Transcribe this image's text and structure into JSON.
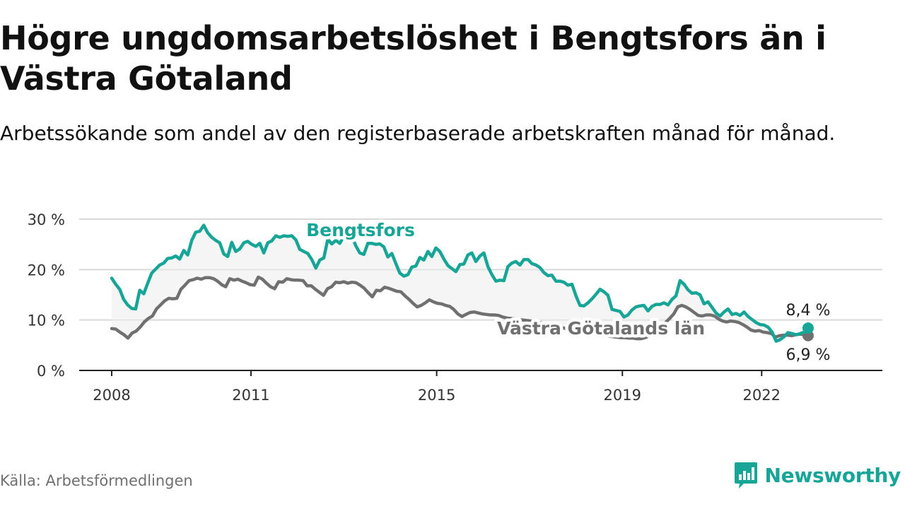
{
  "header": {
    "title": "Högre ungdomsarbetslöshet i Bengtsfors än i Västra Götaland",
    "subtitle": "Arbetssökande som andel av den registerbaserade arbetskraften månad för månad."
  },
  "footer": {
    "source": "Källa: Arbetsförmedlingen",
    "brand": "Newsworthy"
  },
  "colors": {
    "bengtsfors": "#16a596",
    "vastra_gotaland": "#707070",
    "band": "#ececec",
    "grid": "#d9d9d9",
    "axis": "#222222"
  },
  "chart_data": {
    "type": "line",
    "title": "Högre ungdomsarbetslöshet i Bengtsfors än i Västra Götaland",
    "subtitle": "Arbetssökande som andel av den registerbaserade arbetskraften månad för månad.",
    "xlabel": "",
    "ylabel": "",
    "x_range": [
      2008.0,
      2023.0
    ],
    "xlim": [
      2007.3,
      2024.6
    ],
    "ylim": [
      0,
      30
    ],
    "x_ticks": [
      {
        "value": 2008,
        "label": "2008"
      },
      {
        "value": 2011,
        "label": "2011"
      },
      {
        "value": 2015,
        "label": "2015"
      },
      {
        "value": 2019,
        "label": "2019"
      },
      {
        "value": 2022,
        "label": "2022"
      }
    ],
    "y_ticks": [
      {
        "value": 0,
        "label": "0 %"
      },
      {
        "value": 10,
        "label": "10 %"
      },
      {
        "value": 20,
        "label": "20 %"
      },
      {
        "value": 30,
        "label": "30 %"
      }
    ],
    "grid": true,
    "series": [
      {
        "name": "Bengtsfors",
        "color": "#16a596",
        "end_label": "8,4 %",
        "label_placement": "above the line, near 2012",
        "values": [
          18.3,
          17.1,
          16.1,
          14.1,
          13.0,
          12.3,
          12.2,
          15.9,
          15.2,
          17.3,
          19.3,
          20.1,
          20.9,
          21.3,
          22.2,
          22.3,
          22.7,
          22.1,
          23.8,
          22.9,
          25.8,
          27.4,
          27.6,
          28.8,
          27.3,
          26.4,
          25.8,
          25.3,
          23.1,
          22.6,
          25.4,
          23.6,
          24.1,
          25.3,
          25.6,
          25.0,
          24.6,
          25.2,
          23.3,
          25.3,
          25.7,
          26.7,
          26.4,
          26.7,
          26.6,
          26.7,
          25.9,
          24.0,
          23.6,
          23.2,
          22.0,
          20.3,
          21.9,
          22.3,
          26.0,
          25.1,
          25.8,
          25.2,
          26.6,
          27.1,
          26.6,
          24.7,
          23.3,
          23.0,
          25.2,
          25.2,
          25.0,
          25.1,
          24.5,
          22.5,
          23.2,
          21.2,
          19.3,
          18.7,
          19.0,
          20.5,
          20.7,
          22.4,
          21.9,
          23.6,
          22.6,
          24.3,
          23.6,
          22.1,
          20.8,
          20.2,
          19.6,
          21.0,
          21.1,
          22.9,
          23.3,
          21.6,
          22.7,
          23.3,
          20.6,
          19.0,
          17.7,
          17.9,
          17.8,
          20.6,
          21.3,
          21.6,
          20.9,
          22.0,
          22.0,
          21.2,
          20.9,
          20.4,
          19.4,
          18.8,
          18.9,
          17.7,
          17.7,
          17.5,
          16.9,
          17.1,
          14.8,
          12.9,
          12.8,
          13.4,
          14.2,
          15.1,
          16.1,
          15.6,
          14.9,
          12.1,
          11.9,
          11.7,
          10.6,
          11.0,
          12.0,
          12.6,
          12.8,
          12.9,
          11.8,
          12.7,
          13.1,
          13.1,
          13.4,
          13.0,
          14.1,
          14.8,
          17.8,
          17.1,
          16.0,
          15.3,
          15.4,
          15.0,
          13.2,
          13.6,
          12.5,
          11.4,
          10.8,
          11.6,
          12.2,
          11.1,
          11.3,
          10.9,
          11.6,
          10.7,
          10.1,
          9.5,
          9.1,
          9.0,
          8.6,
          7.6,
          5.8,
          6.1,
          6.7,
          7.5,
          7.3,
          7.1,
          7.3,
          7.6,
          8.4
        ]
      },
      {
        "name": "Västra Götalands län",
        "color": "#707070",
        "end_label": "6,9 %",
        "label_placement": "below the band, near 2018",
        "values": [
          8.3,
          8.2,
          7.6,
          7.1,
          6.4,
          7.4,
          7.8,
          8.6,
          9.6,
          10.3,
          10.8,
          12.2,
          13.0,
          13.8,
          14.3,
          14.2,
          14.3,
          16.1,
          16.9,
          17.8,
          18.0,
          18.3,
          18.1,
          18.4,
          18.4,
          18.2,
          17.7,
          17.0,
          16.6,
          18.2,
          17.9,
          18.1,
          17.7,
          17.4,
          17.0,
          16.9,
          18.5,
          18.1,
          17.3,
          16.6,
          16.2,
          17.6,
          17.5,
          18.2,
          18.0,
          17.9,
          17.9,
          17.8,
          16.8,
          16.8,
          16.1,
          15.5,
          14.9,
          16.2,
          16.6,
          17.5,
          17.4,
          17.6,
          17.3,
          17.5,
          17.4,
          16.9,
          16.3,
          15.4,
          14.6,
          15.9,
          15.8,
          16.5,
          16.3,
          16.0,
          15.7,
          15.6,
          14.8,
          14.1,
          13.3,
          12.6,
          12.9,
          13.4,
          14.0,
          13.6,
          13.3,
          13.2,
          12.9,
          12.7,
          12.1,
          11.2,
          10.7,
          11.1,
          11.5,
          11.6,
          11.4,
          11.2,
          11.1,
          11.0,
          11.0,
          10.9,
          10.6,
          10.4,
          10.3,
          10.2,
          10.1,
          10.0,
          9.9,
          9.8,
          9.7,
          9.5,
          9.3,
          9.2,
          9.0,
          8.8,
          8.6,
          8.4,
          8.2,
          8.0,
          7.9,
          7.7,
          7.5,
          7.4,
          7.3,
          7.1,
          7.0,
          6.9,
          6.8,
          6.7,
          6.6,
          6.5,
          6.5,
          6.4,
          6.4,
          6.3,
          6.3,
          6.5,
          6.9,
          7.5,
          8.0,
          8.6,
          9.5,
          10.3,
          11.2,
          12.6,
          12.9,
          12.6,
          12.1,
          11.5,
          10.9,
          10.8,
          11.0,
          11.0,
          10.8,
          10.2,
          9.8,
          9.6,
          9.8,
          9.7,
          9.5,
          9.1,
          8.6,
          8.0,
          7.8,
          7.9,
          7.6,
          7.5,
          7.3,
          6.6,
          6.9,
          7.0,
          7.0,
          6.9,
          7.1,
          7.2,
          7.1,
          6.9
        ]
      }
    ]
  }
}
